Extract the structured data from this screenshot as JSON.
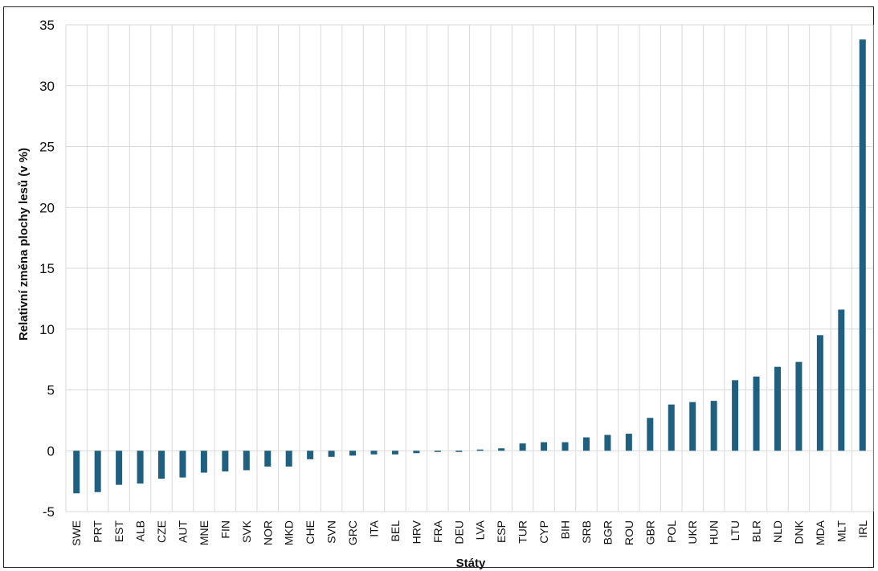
{
  "chart_data": {
    "type": "bar",
    "xlabel": "Státy",
    "ylabel": "Relativní změna plochy lesů (v %)",
    "ylim": [
      -5,
      35
    ],
    "yticks": [
      -5,
      0,
      5,
      10,
      15,
      20,
      25,
      30,
      35
    ],
    "grid": true,
    "bar_color": "#1f5f7f",
    "categories": [
      "SWE",
      "PRT",
      "EST",
      "ALB",
      "CZE",
      "AUT",
      "MNE",
      "FIN",
      "SVK",
      "NOR",
      "MKD",
      "CHE",
      "SVN",
      "GRC",
      "ITA",
      "BEL",
      "HRV",
      "FRA",
      "DEU",
      "LVA",
      "ESP",
      "TUR",
      "CYP",
      "BIH",
      "SRB",
      "BGR",
      "ROU",
      "GBR",
      "POL",
      "UKR",
      "HUN",
      "LTU",
      "BLR",
      "NLD",
      "DNK",
      "MDA",
      "MLT",
      "IRL"
    ],
    "values": [
      -3.5,
      -3.4,
      -2.8,
      -2.7,
      -2.3,
      -2.2,
      -1.8,
      -1.7,
      -1.6,
      -1.3,
      -1.3,
      -0.7,
      -0.5,
      -0.4,
      -0.3,
      -0.3,
      -0.2,
      -0.1,
      -0.1,
      0.1,
      0.2,
      0.6,
      0.7,
      0.7,
      1.1,
      1.3,
      1.4,
      2.7,
      3.8,
      4.0,
      4.1,
      5.8,
      6.1,
      6.9,
      7.3,
      9.5,
      11.6,
      33.8
    ]
  }
}
